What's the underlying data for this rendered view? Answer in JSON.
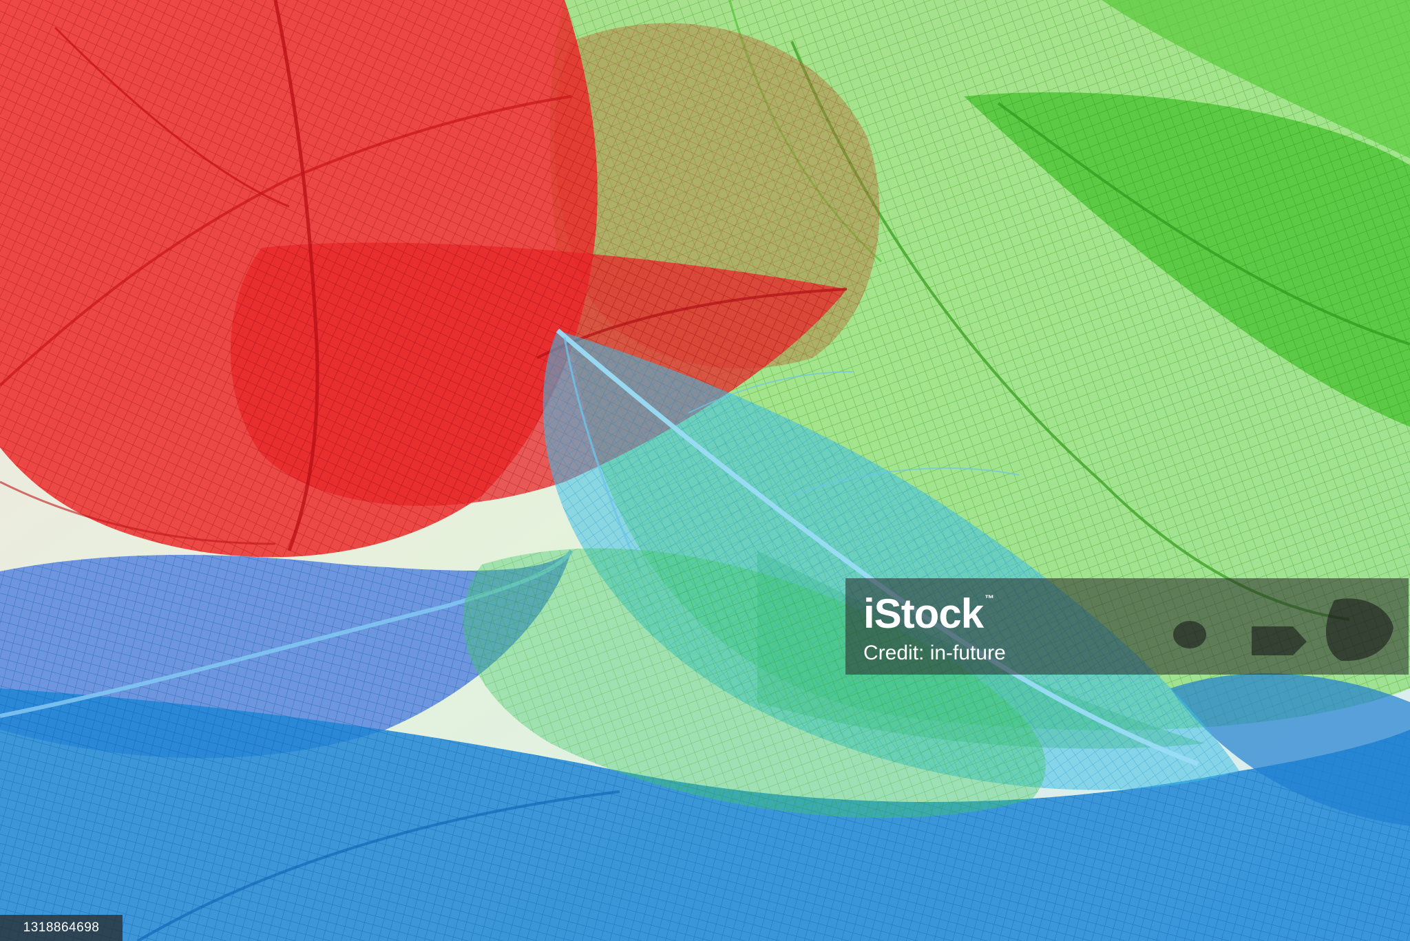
{
  "photo": {
    "subject": "skeleton-leaves",
    "palette": {
      "red": "#e8262a",
      "green": "#5fcf3a",
      "blue": "#1e86d6",
      "cyan": "#3fb4ea",
      "background": "#e9f1e4"
    }
  },
  "watermark": {
    "brand": "iStock",
    "trademark": "™",
    "credit": "Credit: in-future"
  },
  "image_id": "1318864698"
}
